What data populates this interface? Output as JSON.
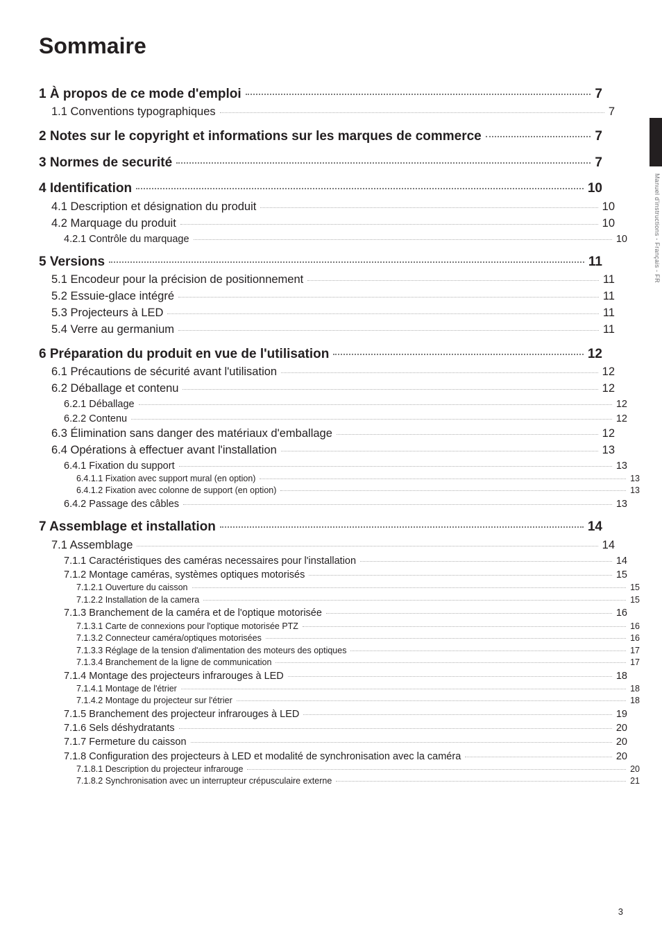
{
  "title": "Sommaire",
  "side_label": "Manuel d'instructions - Français - FR",
  "footer_page": "3",
  "toc": [
    {
      "level": 1,
      "text": "1 À propos de ce mode d'emploi",
      "page": "7"
    },
    {
      "level": 2,
      "text": "1.1 Conventions typographiques",
      "page": "7"
    },
    {
      "level": 1,
      "text": "2 Notes sur le copyright et informations sur les marques de commerce",
      "page": "7"
    },
    {
      "level": 1,
      "text": "3 Normes de securité",
      "page": "7"
    },
    {
      "level": 1,
      "text": "4 Identification",
      "page": "10"
    },
    {
      "level": 2,
      "text": "4.1 Description et désignation du produit",
      "page": "10"
    },
    {
      "level": 2,
      "text": "4.2 Marquage du produit",
      "page": "10"
    },
    {
      "level": 3,
      "text": "4.2.1 Contrôle du marquage",
      "page": "10"
    },
    {
      "level": 1,
      "text": "5 Versions",
      "page": "11"
    },
    {
      "level": 2,
      "text": "5.1 Encodeur pour la précision de positionnement",
      "page": "11"
    },
    {
      "level": 2,
      "text": "5.2 Essuie-glace intégré",
      "page": "11"
    },
    {
      "level": 2,
      "text": "5.3 Projecteurs à LED",
      "page": "11"
    },
    {
      "level": 2,
      "text": "5.4 Verre au germanium",
      "page": "11"
    },
    {
      "level": 1,
      "text": "6 Préparation du produit en vue de l'utilisation",
      "page": "12"
    },
    {
      "level": 2,
      "text": "6.1 Précautions de sécurité avant l'utilisation",
      "page": "12"
    },
    {
      "level": 2,
      "text": "6.2 Déballage et contenu",
      "page": "12"
    },
    {
      "level": 3,
      "text": "6.2.1 Déballage",
      "page": "12"
    },
    {
      "level": 3,
      "text": "6.2.2 Contenu",
      "page": "12"
    },
    {
      "level": 2,
      "text": "6.3 Élimination sans danger des matériaux d'emballage",
      "page": "12"
    },
    {
      "level": 2,
      "text": "6.4 Opérations à effectuer avant l'installation",
      "page": "13"
    },
    {
      "level": 3,
      "text": "6.4.1 Fixation du support",
      "page": "13"
    },
    {
      "level": 4,
      "text": "6.4.1.1 Fixation avec support mural (en option)",
      "page": "13"
    },
    {
      "level": 4,
      "text": "6.4.1.2 Fixation avec colonne de support (en option)",
      "page": "13"
    },
    {
      "level": 3,
      "text": "6.4.2 Passage des câbles",
      "page": "13"
    },
    {
      "level": 1,
      "text": "7 Assemblage et installation",
      "page": "14"
    },
    {
      "level": 2,
      "text": "7.1 Assemblage",
      "page": "14"
    },
    {
      "level": 3,
      "text": "7.1.1 Caractéristiques des caméras necessaires pour l'installation",
      "page": "14"
    },
    {
      "level": 3,
      "text": "7.1.2 Montage caméras, systèmes optiques motorisés",
      "page": "15"
    },
    {
      "level": 4,
      "text": "7.1.2.1 Ouverture du caisson",
      "page": "15"
    },
    {
      "level": 4,
      "text": "7.1.2.2 Installation de la camera",
      "page": "15"
    },
    {
      "level": 3,
      "text": "7.1.3 Branchement de la caméra et de l'optique motorisée",
      "page": "16"
    },
    {
      "level": 4,
      "text": "7.1.3.1 Carte de connexions pour l'optique motorisée PTZ",
      "page": "16"
    },
    {
      "level": 4,
      "text": "7.1.3.2 Connecteur caméra/optiques motorisées",
      "page": "16"
    },
    {
      "level": 4,
      "text": "7.1.3.3 Réglage de la tension d'alimentation des moteurs des optiques",
      "page": "17"
    },
    {
      "level": 4,
      "text": "7.1.3.4 Branchement de la ligne de communication",
      "page": "17"
    },
    {
      "level": 3,
      "text": "7.1.4 Montage des projecteurs infrarouges à LED",
      "page": "18"
    },
    {
      "level": 4,
      "text": "7.1.4.1 Montage de l'étrier",
      "page": "18"
    },
    {
      "level": 4,
      "text": "7.1.4.2 Montage du projecteur sur l'étrier",
      "page": "18"
    },
    {
      "level": 3,
      "text": "7.1.5 Branchement des projecteur infrarouges à LED",
      "page": "19"
    },
    {
      "level": 3,
      "text": "7.1.6 Sels déshydratants",
      "page": "20"
    },
    {
      "level": 3,
      "text": "7.1.7 Fermeture du caisson",
      "page": "20"
    },
    {
      "level": 3,
      "text": "7.1.8 Configuration des projecteurs à LED et modalité de synchronisation avec la caméra",
      "page": "20"
    },
    {
      "level": 4,
      "text": "7.1.8.1 Description du projecteur infrarouge",
      "page": "20"
    },
    {
      "level": 4,
      "text": "7.1.8.2 Synchronisation avec un interrupteur crépusculaire externe",
      "page": "21"
    }
  ]
}
